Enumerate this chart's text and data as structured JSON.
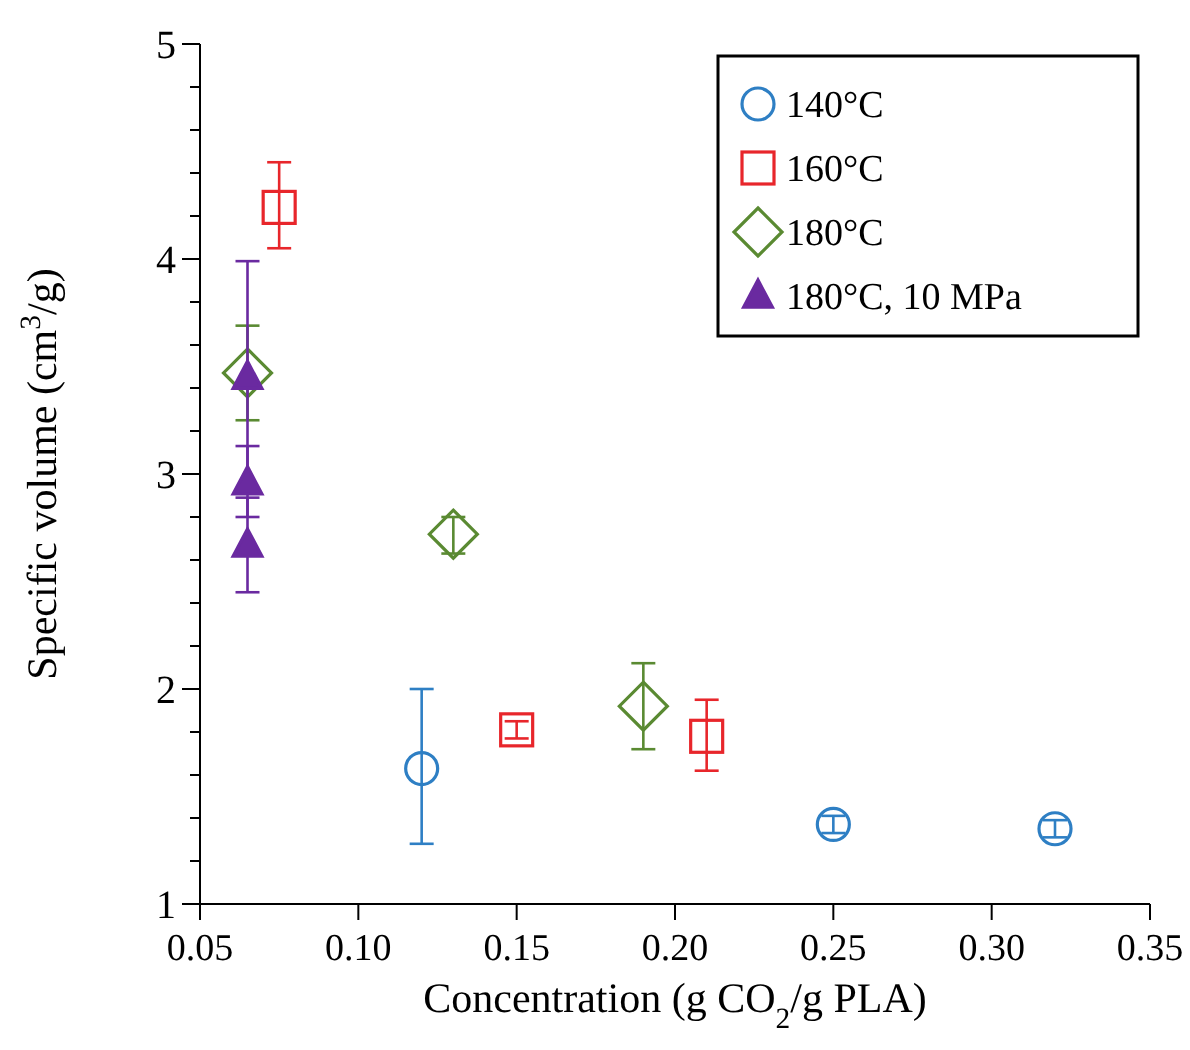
{
  "chart_data": {
    "type": "scatter",
    "xlabel": "Concentration (g CO$_{2}$/g PLA)",
    "ylabel": "Specific volume (cm$^{3}$/g)",
    "xlim": [
      0.05,
      0.35
    ],
    "xticks": [
      {
        "value": 0.05,
        "label": "0.05"
      },
      {
        "value": 0.1,
        "label": "0.10"
      },
      {
        "value": 0.15,
        "label": "0.15"
      },
      {
        "value": 0.2,
        "label": "0.20"
      },
      {
        "value": 0.25,
        "label": "0.25"
      },
      {
        "value": 0.3,
        "label": "0.30"
      },
      {
        "value": 0.35,
        "label": "0.35"
      }
    ],
    "ylim": [
      1,
      5
    ],
    "yticks": [
      1,
      2,
      3,
      4,
      5
    ],
    "grid": false,
    "legend": "top right",
    "series": [
      {
        "name": "140°C",
        "color": "#2e7fc4",
        "marker": "circle",
        "x": [
          0.12,
          0.25,
          0.32
        ],
        "values": [
          1.63,
          1.37,
          1.35
        ],
        "errors": [
          [
            1.28,
            2.0
          ],
          [
            1.33,
            1.41
          ],
          [
            1.31,
            1.39
          ]
        ]
      },
      {
        "name": "160°C",
        "color": "#e8262b",
        "marker": "square",
        "x": [
          0.075,
          0.15,
          0.21
        ],
        "values": [
          4.24,
          1.81,
          1.78
        ],
        "errors": [
          [
            4.05,
            4.45
          ],
          [
            1.77,
            1.85
          ],
          [
            1.62,
            1.95
          ]
        ]
      },
      {
        "name": "180°C",
        "color": "#5a8a32",
        "marker": "diamond",
        "x": [
          0.065,
          0.13,
          0.19
        ],
        "values": [
          3.47,
          2.72,
          1.92
        ],
        "errors": [
          [
            3.25,
            3.69
          ],
          [
            2.63,
            2.8
          ],
          [
            1.72,
            2.12
          ]
        ]
      },
      {
        "name": "180°C, 10 MPa",
        "color": "#6a2aa0",
        "marker": "triangle",
        "x": [
          0.065,
          0.065,
          0.065
        ],
        "values": [
          3.45,
          2.96,
          2.67
        ],
        "errors": [
          [
            2.91,
            3.99
          ],
          [
            2.8,
            3.13
          ],
          [
            2.45,
            2.89
          ]
        ]
      }
    ]
  }
}
